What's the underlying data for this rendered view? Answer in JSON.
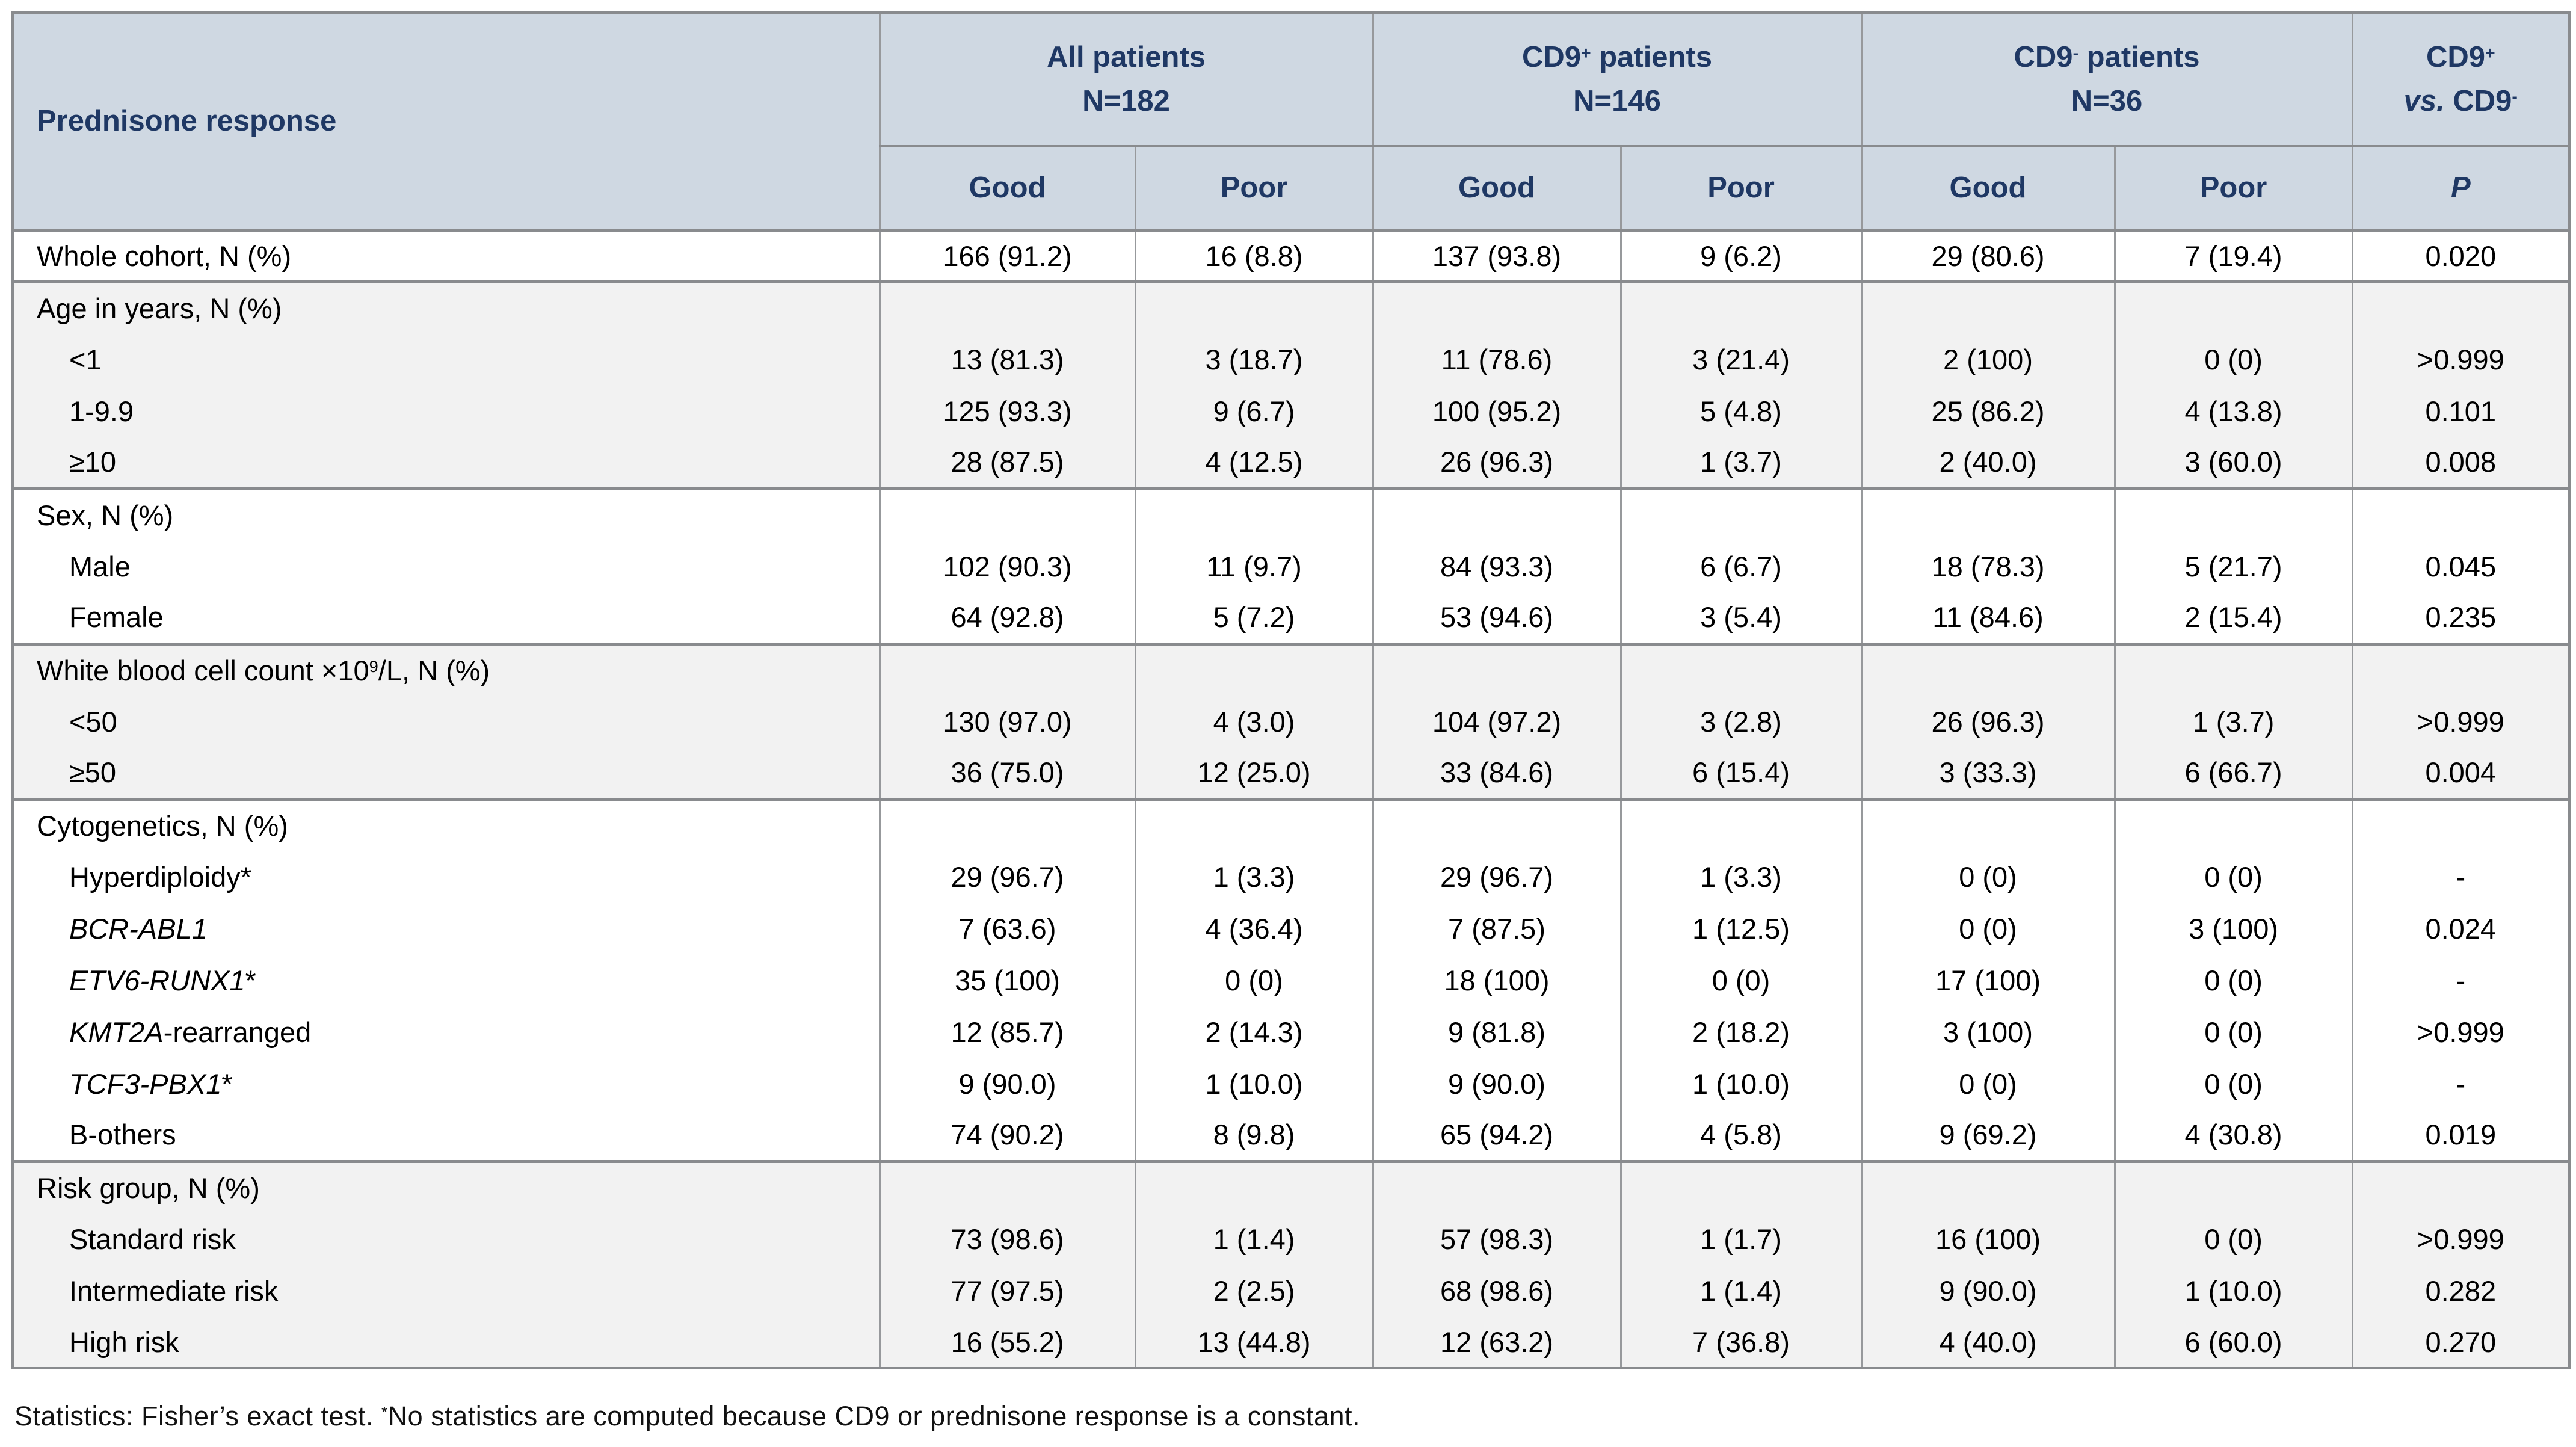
{
  "colors": {
    "header_bg": "#cfd8e2",
    "header_text": "#1f3864",
    "alt_row_bg": "#f2f2f2",
    "grid_line": "#97999c",
    "separator_line": "#898b8e",
    "body_text": "#000000"
  },
  "table": {
    "header": {
      "label": {
        "name": "header-prednisone-response",
        "lines": [
          [
            {
              "t": "Prednisone response"
            }
          ]
        ]
      },
      "groups": [
        {
          "name": "header-all-patients",
          "lines": [
            [
              {
                "t": "All patients"
              }
            ],
            [
              {
                "t": "N=182"
              }
            ]
          ]
        },
        {
          "name": "header-cd9-positive-patients",
          "lines": [
            [
              {
                "t": "CD9"
              },
              {
                "t": "+",
                "sup": true
              },
              {
                "t": " patients"
              }
            ],
            [
              {
                "t": "N=146"
              }
            ]
          ]
        },
        {
          "name": "header-cd9-negative-patients",
          "lines": [
            [
              {
                "t": "CD9"
              },
              {
                "t": "-",
                "sup": true
              },
              {
                "t": " patients"
              }
            ],
            [
              {
                "t": "N=36"
              }
            ]
          ]
        }
      ],
      "pcol": {
        "name": "header-cd9-pos-vs-cd9-neg",
        "lines": [
          [
            {
              "t": "CD9"
            },
            {
              "t": "+",
              "sup": true
            }
          ],
          [
            {
              "t": "vs.",
              "italic": true
            },
            {
              "t": " CD9"
            },
            {
              "t": "-",
              "sup": true
            }
          ]
        ]
      },
      "sub": [
        {
          "name": "subheader-good-all",
          "segs": [
            {
              "t": "Good"
            }
          ]
        },
        {
          "name": "subheader-poor-all",
          "segs": [
            {
              "t": "Poor"
            }
          ]
        },
        {
          "name": "subheader-good-cd9-pos",
          "segs": [
            {
              "t": "Good"
            }
          ]
        },
        {
          "name": "subheader-poor-cd9-pos",
          "segs": [
            {
              "t": "Poor"
            }
          ]
        },
        {
          "name": "subheader-good-cd9-neg",
          "segs": [
            {
              "t": "Good"
            }
          ]
        },
        {
          "name": "subheader-poor-cd9-neg",
          "segs": [
            {
              "t": "Poor"
            }
          ]
        },
        {
          "name": "subheader-p-value",
          "segs": [
            {
              "t": "P",
              "italic": true
            }
          ]
        }
      ]
    },
    "groups": [
      {
        "name": "whole-cohort",
        "bg": "white",
        "section": null,
        "rows": [
          {
            "label": [
              {
                "t": "Whole cohort, N (%)"
              }
            ],
            "cells": [
              "166 (91.2)",
              "16 (8.8)",
              "137 (93.8)",
              "9 (6.2)",
              "29 (80.6)",
              "7 (19.4)",
              "0.020"
            ]
          }
        ]
      },
      {
        "name": "age",
        "bg": "gray",
        "section": [
          {
            "t": "Age in years, N (%)"
          }
        ],
        "rows": [
          {
            "label": [
              {
                "t": "<1"
              }
            ],
            "cells": [
              "13 (81.3)",
              "3 (18.7)",
              "11 (78.6)",
              "3 (21.4)",
              "2 (100)",
              "0 (0)",
              ">0.999"
            ]
          },
          {
            "label": [
              {
                "t": "1-9.9"
              }
            ],
            "cells": [
              "125 (93.3)",
              "9 (6.7)",
              "100 (95.2)",
              "5 (4.8)",
              "25 (86.2)",
              "4 (13.8)",
              "0.101"
            ]
          },
          {
            "label": [
              {
                "t": "≥10"
              }
            ],
            "cells": [
              "28 (87.5)",
              "4 (12.5)",
              "26 (96.3)",
              "1 (3.7)",
              "2 (40.0)",
              "3 (60.0)",
              "0.008"
            ]
          }
        ]
      },
      {
        "name": "sex",
        "bg": "white",
        "section": [
          {
            "t": "Sex, N (%)"
          }
        ],
        "rows": [
          {
            "label": [
              {
                "t": "Male"
              }
            ],
            "cells": [
              "102 (90.3)",
              "11 (9.7)",
              "84 (93.3)",
              "6 (6.7)",
              "18 (78.3)",
              "5 (21.7)",
              "0.045"
            ]
          },
          {
            "label": [
              {
                "t": "Female"
              }
            ],
            "cells": [
              "64 (92.8)",
              "5 (7.2)",
              "53 (94.6)",
              "3 (5.4)",
              "11 (84.6)",
              "2 (15.4)",
              "0.235"
            ]
          }
        ]
      },
      {
        "name": "wbc",
        "bg": "gray",
        "section": [
          {
            "t": "White blood cell count ×10"
          },
          {
            "t": "9",
            "sup": true
          },
          {
            "t": "/L, N (%)"
          }
        ],
        "rows": [
          {
            "label": [
              {
                "t": "<50"
              }
            ],
            "cells": [
              "130 (97.0)",
              "4 (3.0)",
              "104 (97.2)",
              "3 (2.8)",
              "26 (96.3)",
              "1 (3.7)",
              ">0.999"
            ]
          },
          {
            "label": [
              {
                "t": "≥50"
              }
            ],
            "cells": [
              "36 (75.0)",
              "12 (25.0)",
              "33 (84.6)",
              "6 (15.4)",
              "3 (33.3)",
              "6 (66.7)",
              "0.004"
            ]
          }
        ]
      },
      {
        "name": "cytogenetics",
        "bg": "white",
        "section": [
          {
            "t": "Cytogenetics, N (%)"
          }
        ],
        "rows": [
          {
            "label": [
              {
                "t": "Hyperdiploidy*"
              }
            ],
            "cells": [
              "29 (96.7)",
              "1 (3.3)",
              "29 (96.7)",
              "1 (3.3)",
              "0 (0)",
              "0 (0)",
              "-"
            ]
          },
          {
            "label": [
              {
                "t": "BCR-ABL1",
                "italic": true
              }
            ],
            "cells": [
              "7 (63.6)",
              "4 (36.4)",
              "7 (87.5)",
              "1 (12.5)",
              "0 (0)",
              "3 (100)",
              "0.024"
            ]
          },
          {
            "label": [
              {
                "t": "ETV6-RUNX1",
                "italic": true
              },
              {
                "t": "*"
              }
            ],
            "cells": [
              "35 (100)",
              "0 (0)",
              "18 (100)",
              "0 (0)",
              "17 (100)",
              "0 (0)",
              "-"
            ]
          },
          {
            "label": [
              {
                "t": "KMT2A",
                "italic": true
              },
              {
                "t": "-rearranged"
              }
            ],
            "cells": [
              "12 (85.7)",
              "2 (14.3)",
              "9 (81.8)",
              "2 (18.2)",
              "3 (100)",
              "0 (0)",
              ">0.999"
            ]
          },
          {
            "label": [
              {
                "t": "TCF3-PBX1",
                "italic": true
              },
              {
                "t": "*"
              }
            ],
            "cells": [
              "9 (90.0)",
              "1 (10.0)",
              "9 (90.0)",
              "1 (10.0)",
              "0 (0)",
              "0 (0)",
              "-"
            ]
          },
          {
            "label": [
              {
                "t": "B-others"
              }
            ],
            "cells": [
              "74 (90.2)",
              "8 (9.8)",
              "65 (94.2)",
              "4 (5.8)",
              "9 (69.2)",
              "4 (30.8)",
              "0.019"
            ]
          }
        ]
      },
      {
        "name": "risk-group",
        "bg": "gray",
        "section": [
          {
            "t": "Risk group, N (%)"
          }
        ],
        "rows": [
          {
            "label": [
              {
                "t": "Standard risk"
              }
            ],
            "cells": [
              "73 (98.6)",
              "1 (1.4)",
              "57 (98.3)",
              "1 (1.7)",
              "16 (100)",
              "0 (0)",
              ">0.999"
            ]
          },
          {
            "label": [
              {
                "t": "Intermediate risk"
              }
            ],
            "cells": [
              "77 (97.5)",
              "2 (2.5)",
              "68 (98.6)",
              "1 (1.4)",
              "9 (90.0)",
              "1 (10.0)",
              "0.282"
            ]
          },
          {
            "label": [
              {
                "t": "High risk"
              }
            ],
            "cells": [
              "16 (55.2)",
              "13 (44.8)",
              "12 (63.2)",
              "7 (36.8)",
              "4 (40.0)",
              "6 (60.0)",
              "0.270"
            ]
          }
        ]
      }
    ],
    "footnote": [
      {
        "t": "Statistics: Fisher’s exact test. "
      },
      {
        "t": "*",
        "sup": true
      },
      {
        "t": "No statistics are computed because CD9 or prednisone response is a constant."
      }
    ]
  }
}
